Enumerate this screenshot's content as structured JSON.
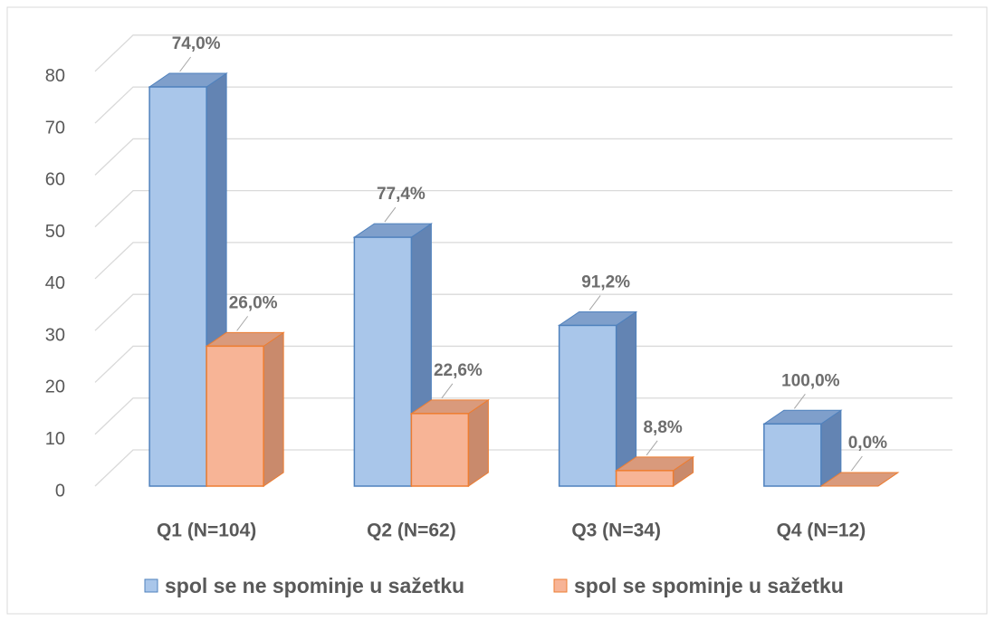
{
  "chart_data": {
    "type": "bar3d",
    "categories": [
      "Q1 (N=104)",
      "Q2 (N=62)",
      "Q3 (N=34)",
      "Q4 (N=12)"
    ],
    "series": [
      {
        "name": "spol se ne spominje u sažetku",
        "color": "#a9c6ea",
        "values": [
          77,
          48,
          31,
          12
        ],
        "labels": [
          "74,0%",
          "77,4%",
          "91,2%",
          "100,0%"
        ]
      },
      {
        "name": "spol se spominje u sažetku",
        "color": "#f7b496",
        "values": [
          27,
          14,
          3,
          0
        ],
        "labels": [
          "26,0%",
          "22,6%",
          "8,8%",
          "0,0%"
        ]
      }
    ],
    "ylim": [
      0,
      80
    ],
    "yticks": [
      0,
      10,
      20,
      30,
      40,
      50,
      60,
      70,
      80
    ],
    "grid": true,
    "legend": "bottom"
  }
}
